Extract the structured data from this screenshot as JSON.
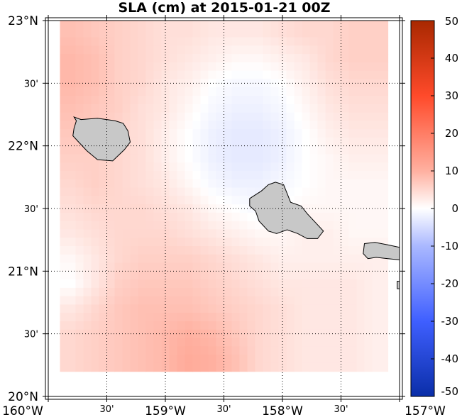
{
  "title": "SLA (cm) at 2015-01-21 00Z",
  "map": {
    "lon_range": [
      -160,
      -157
    ],
    "lat_range": [
      20,
      23
    ],
    "x_ticks": [
      {
        "lon": -160.0,
        "label": "160°W",
        "major": true
      },
      {
        "lon": -159.5,
        "label": "30'",
        "major": false
      },
      {
        "lon": -159.0,
        "label": "159°W",
        "major": true
      },
      {
        "lon": -158.5,
        "label": "30'",
        "major": false
      },
      {
        "lon": -158.0,
        "label": "158°W",
        "major": true
      },
      {
        "lon": -157.5,
        "label": "30'",
        "major": false
      },
      {
        "lon": -157.0,
        "label": "157°W",
        "major": true
      }
    ],
    "y_ticks": [
      {
        "lat": 23.0,
        "label": "23°N",
        "major": true
      },
      {
        "lat": 22.5,
        "label": "30'",
        "major": false
      },
      {
        "lat": 22.0,
        "label": "22°N",
        "major": true
      },
      {
        "lat": 21.5,
        "label": "30'",
        "major": false
      },
      {
        "lat": 21.0,
        "label": "21°N",
        "major": true
      },
      {
        "lat": 20.5,
        "label": "30'",
        "major": false
      },
      {
        "lat": 20.0,
        "label": "20°N",
        "major": true
      }
    ],
    "gridlines": "dotted",
    "colors": {
      "land": "#c8c8c8",
      "ocean_no_data": "#ffffff",
      "coast": "#000000"
    }
  },
  "colorbar": {
    "colormap": "blue-white-red",
    "min": -50,
    "max": 50,
    "ticks": [
      {
        "value": 50,
        "label": "50"
      },
      {
        "value": 40,
        "label": "40"
      },
      {
        "value": 30,
        "label": "30"
      },
      {
        "value": 20,
        "label": "20"
      },
      {
        "value": 10,
        "label": "10"
      },
      {
        "value": 0,
        "label": "0"
      },
      {
        "value": -10,
        "label": "-10"
      },
      {
        "value": -20,
        "label": "-20"
      },
      {
        "value": -30,
        "label": "-30"
      },
      {
        "value": -40,
        "label": "-40"
      },
      {
        "value": -50,
        "label": "-50"
      }
    ],
    "stops": [
      {
        "value": -50,
        "color": "#0a2ea8"
      },
      {
        "value": -30,
        "color": "#3f5fff"
      },
      {
        "value": -10,
        "color": "#aab8ff"
      },
      {
        "value": 0,
        "color": "#ffffff"
      },
      {
        "value": 10,
        "color": "#ffb0a0"
      },
      {
        "value": 30,
        "color": "#ff4a2a"
      },
      {
        "value": 50,
        "color": "#a82800"
      }
    ]
  },
  "chart_data": {
    "type": "heatmap",
    "title": "SLA (cm) at 2015-01-21 00Z",
    "xlabel": "",
    "ylabel": "",
    "x_unit": "degrees_east",
    "y_unit": "degrees_north",
    "x": [
      -159.8,
      -159.6,
      -159.4,
      -159.2,
      -159.0,
      -158.8,
      -158.6,
      -158.4,
      -158.2,
      -158.0,
      -157.8,
      -157.6,
      -157.4,
      -157.2
    ],
    "y": [
      22.9,
      22.7,
      22.5,
      22.3,
      22.1,
      21.9,
      21.7,
      21.5,
      21.3,
      21.1,
      20.9,
      20.7,
      20.5,
      20.3
    ],
    "z": [
      [
        8,
        7,
        6,
        5,
        4,
        4,
        3,
        3,
        3,
        4,
        5,
        5,
        6,
        6
      ],
      [
        9,
        8,
        6,
        5,
        4,
        3,
        2,
        1,
        1,
        2,
        3,
        5,
        6,
        6
      ],
      [
        9,
        8,
        6,
        5,
        3,
        2,
        0,
        -1,
        -1,
        0,
        2,
        4,
        5,
        5
      ],
      [
        8,
        7,
        6,
        4,
        3,
        1,
        -1,
        -2,
        -2,
        -1,
        1,
        3,
        4,
        4
      ],
      [
        7,
        7,
        5,
        4,
        2,
        0,
        -2,
        -3,
        -3,
        -2,
        0,
        2,
        3,
        3
      ],
      [
        6,
        6,
        5,
        4,
        2,
        0,
        -2,
        -3,
        -3,
        -2,
        0,
        1,
        2,
        2
      ],
      [
        5,
        6,
        5,
        4,
        3,
        1,
        -1,
        -2,
        -2,
        -1,
        0,
        1,
        1,
        1
      ],
      [
        4,
        5,
        5,
        5,
        4,
        3,
        1,
        0,
        -1,
        0,
        1,
        1,
        1,
        1
      ],
      [
        3,
        4,
        5,
        5,
        5,
        4,
        3,
        2,
        1,
        1,
        2,
        2,
        1,
        1
      ],
      [
        1,
        3,
        5,
        6,
        6,
        6,
        5,
        4,
        3,
        2,
        2,
        2,
        2,
        2
      ],
      [
        0,
        3,
        6,
        7,
        7,
        7,
        6,
        5,
        4,
        3,
        3,
        3,
        3,
        2
      ],
      [
        3,
        5,
        7,
        8,
        8,
        8,
        7,
        6,
        5,
        4,
        3,
        3,
        3,
        2
      ],
      [
        5,
        6,
        7,
        8,
        9,
        10,
        9,
        7,
        5,
        4,
        3,
        3,
        3,
        2
      ],
      [
        5,
        6,
        7,
        8,
        9,
        11,
        10,
        8,
        5,
        4,
        3,
        3,
        3,
        2
      ]
    ],
    "zlim": [
      -50,
      50
    ],
    "data_lon_range": [
      -159.9,
      -157.1
    ],
    "data_lat_range": [
      20.2,
      23.0
    ]
  },
  "islands": [
    {
      "name": "kauai-island",
      "coords": [
        [
          -159.78,
          22.23
        ],
        [
          -159.72,
          22.21
        ],
        [
          -159.58,
          22.22
        ],
        [
          -159.43,
          22.2
        ],
        [
          -159.36,
          22.18
        ],
        [
          -159.32,
          22.12
        ],
        [
          -159.3,
          22.03
        ],
        [
          -159.35,
          21.97
        ],
        [
          -159.45,
          21.88
        ],
        [
          -159.58,
          21.89
        ],
        [
          -159.67,
          21.96
        ],
        [
          -159.74,
          22.03
        ],
        [
          -159.79,
          22.08
        ],
        [
          -159.78,
          22.14
        ],
        [
          -159.76,
          22.2
        ]
      ]
    },
    {
      "name": "oahu-island",
      "coords": [
        [
          -158.28,
          21.58
        ],
        [
          -158.18,
          21.64
        ],
        [
          -158.12,
          21.69
        ],
        [
          -158.06,
          21.71
        ],
        [
          -157.99,
          21.69
        ],
        [
          -157.96,
          21.62
        ],
        [
          -157.93,
          21.55
        ],
        [
          -157.84,
          21.52
        ],
        [
          -157.79,
          21.46
        ],
        [
          -157.73,
          21.4
        ],
        [
          -157.65,
          21.32
        ],
        [
          -157.7,
          21.26
        ],
        [
          -157.79,
          21.26
        ],
        [
          -157.87,
          21.3
        ],
        [
          -157.96,
          21.33
        ],
        [
          -158.05,
          21.3
        ],
        [
          -158.12,
          21.32
        ],
        [
          -158.2,
          21.4
        ],
        [
          -158.23,
          21.48
        ],
        [
          -158.28,
          21.52
        ]
      ]
    },
    {
      "name": "molokai-island",
      "coords": [
        [
          -157.3,
          21.22
        ],
        [
          -157.21,
          21.23
        ],
        [
          -157.1,
          21.21
        ],
        [
          -157.0,
          21.19
        ],
        [
          -157.0,
          21.09
        ],
        [
          -157.1,
          21.1
        ],
        [
          -157.2,
          21.11
        ],
        [
          -157.27,
          21.1
        ],
        [
          -157.31,
          21.14
        ]
      ]
    },
    {
      "name": "lanai-island",
      "coords": [
        [
          -157.02,
          20.92
        ],
        [
          -157.0,
          20.92
        ],
        [
          -157.0,
          20.86
        ],
        [
          -157.02,
          20.86
        ]
      ]
    }
  ]
}
